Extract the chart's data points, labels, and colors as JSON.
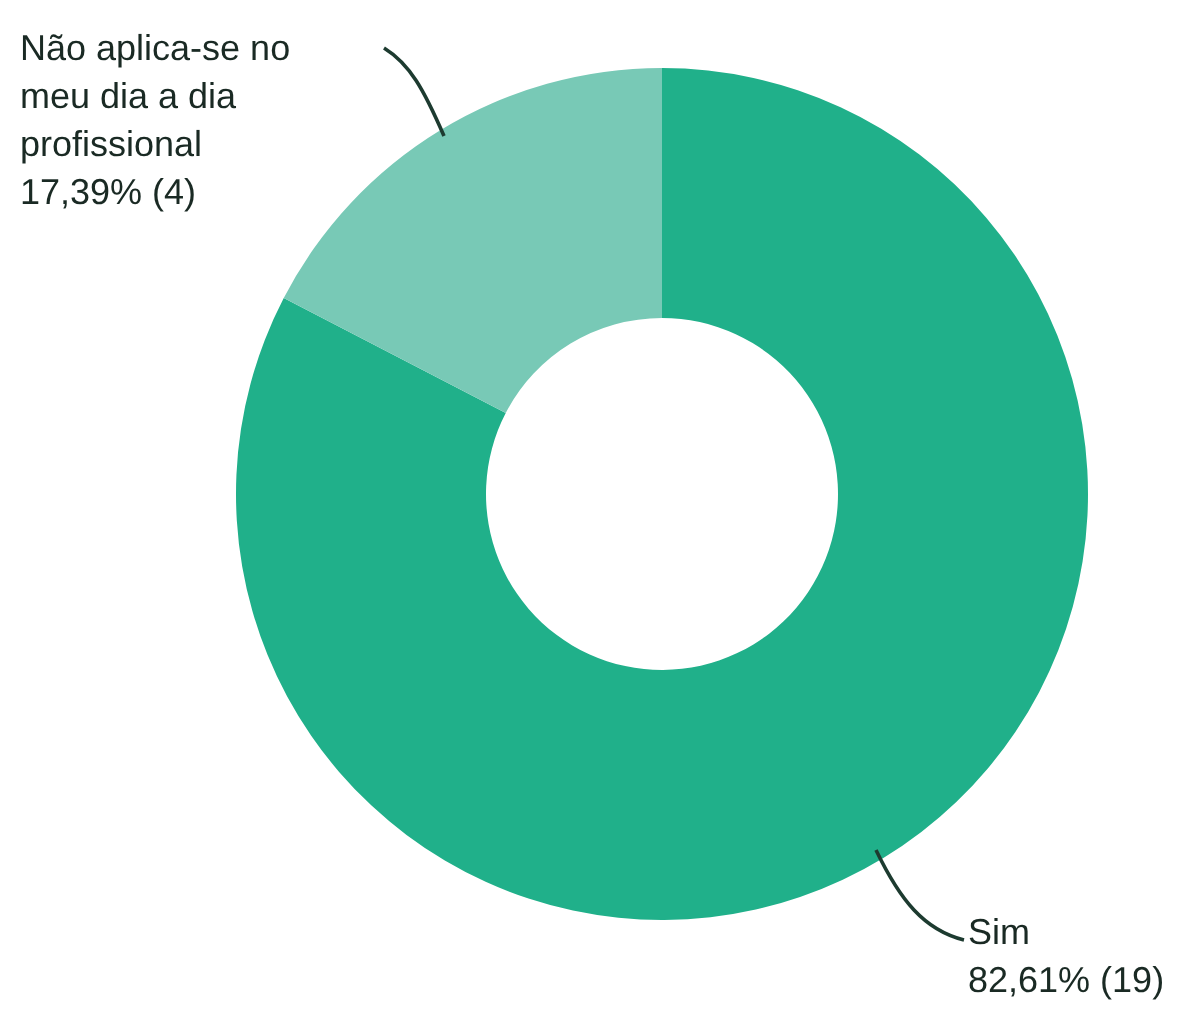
{
  "chart_data": {
    "type": "donut",
    "categories": [
      "Sim",
      "Não aplica-se no meu dia a dia profissional"
    ],
    "values": [
      19,
      4
    ],
    "colors": [
      "#20b08a",
      "#78c9b6"
    ],
    "value_labels": [
      "82,61% (19)",
      "17,39% (4)"
    ]
  }
}
